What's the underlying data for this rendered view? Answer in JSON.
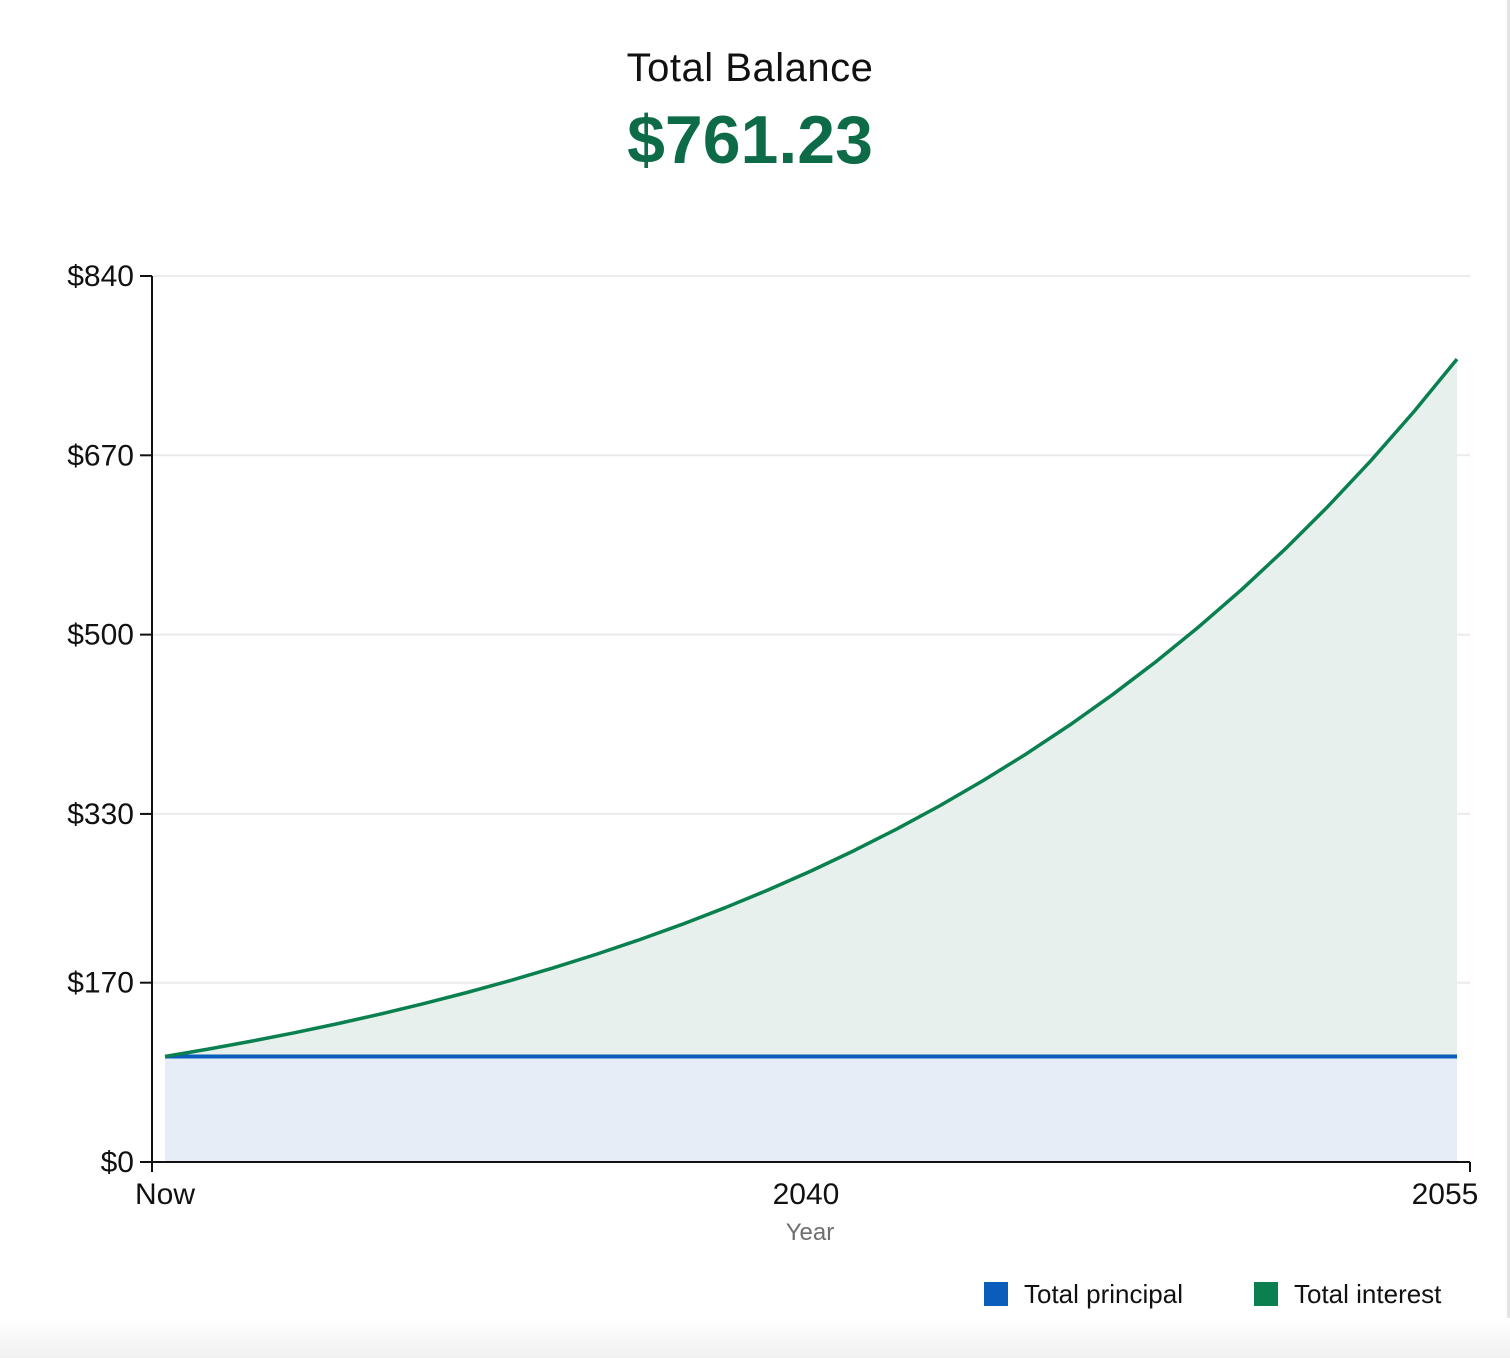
{
  "header": {
    "title": "Total Balance",
    "total": "$761.23"
  },
  "chart_data": {
    "type": "area",
    "title": "Total Balance",
    "xlabel": "Year",
    "ylabel": "",
    "x_tick_labels": [
      "Now",
      "2040",
      "2055"
    ],
    "y_tick_labels": [
      "$0",
      "$170",
      "$330",
      "$500",
      "$670",
      "$840"
    ],
    "y_tick_values": [
      0,
      170,
      330,
      500,
      670,
      840
    ],
    "ylim": [
      0,
      840
    ],
    "x": [
      2025,
      2026,
      2027,
      2028,
      2029,
      2030,
      2031,
      2032,
      2033,
      2034,
      2035,
      2036,
      2037,
      2038,
      2039,
      2040,
      2041,
      2042,
      2043,
      2044,
      2045,
      2046,
      2047,
      2048,
      2049,
      2050,
      2051,
      2052,
      2053,
      2054,
      2055
    ],
    "stacked": true,
    "series": [
      {
        "name": "Total principal",
        "color": "#0a5dbb",
        "fill": "#e7edf7",
        "values": [
          100,
          100,
          100,
          100,
          100,
          100,
          100,
          100,
          100,
          100,
          100,
          100,
          100,
          100,
          100,
          100,
          100,
          100,
          100,
          100,
          100,
          100,
          100,
          100,
          100,
          100,
          100,
          100,
          100,
          100,
          100
        ]
      },
      {
        "name": "Total interest",
        "color": "#0a8050",
        "fill": "#e7f0ec",
        "values": [
          0,
          7,
          14.49,
          22.5,
          31.08,
          40.26,
          50.07,
          60.58,
          71.82,
          83.85,
          96.72,
          110.49,
          125.22,
          140.99,
          157.85,
          175.9,
          195.22,
          215.88,
          237.99,
          261.65,
          286.97,
          314.06,
          343.04,
          374.05,
          407.24,
          442.74,
          480.74,
          521.39,
          564.88,
          611.43,
          661.23
        ]
      }
    ],
    "grid": true,
    "legend": "bottom-right"
  }
}
